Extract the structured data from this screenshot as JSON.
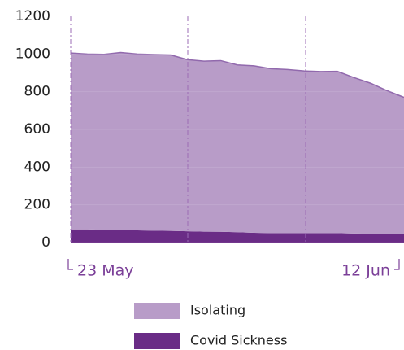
{
  "chart_data": {
    "type": "area",
    "categories": [
      "23 May",
      null,
      null,
      null,
      null,
      null,
      null,
      null,
      null,
      null,
      null,
      null,
      null,
      null,
      null,
      null,
      null,
      null,
      null,
      null,
      "12 Jun"
    ],
    "series": [
      {
        "name": "Covid Sickness",
        "color": "#6a2c86",
        "values": [
          70,
          70,
          68,
          68,
          65,
          63,
          62,
          60,
          58,
          57,
          55,
          52,
          50,
          50,
          50,
          50,
          50,
          48,
          47,
          45,
          45
        ]
      },
      {
        "name": "Isolating",
        "color": "#b89cc8",
        "line_color": "#9169ad",
        "values": [
          935,
          930,
          930,
          940,
          935,
          934,
          933,
          910,
          904,
          908,
          887,
          885,
          872,
          868,
          860,
          857,
          858,
          827,
          798,
          760,
          725
        ]
      }
    ],
    "stacked": true,
    "ylim": [
      0,
      1200
    ],
    "yticks": [
      0,
      200,
      400,
      600,
      800,
      1000,
      1200
    ],
    "grid": true
  }
}
